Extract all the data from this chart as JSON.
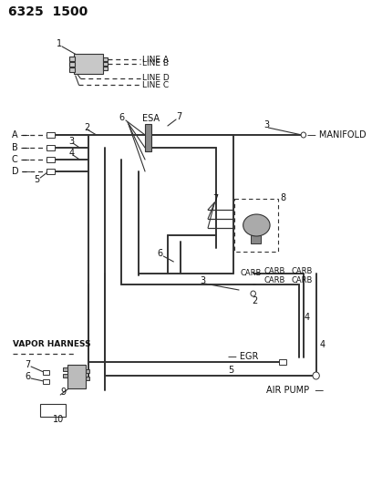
{
  "title": "6325  1500",
  "bg_color": "#ffffff",
  "lc": "#333333",
  "tc": "#111111",
  "lw": 1.4,
  "tlw": 0.9,
  "labels": {
    "line_a": "LINE A",
    "line_b": "LINE B",
    "line_d": "LINE D",
    "line_c": "LINE C",
    "manifold": "MANIFOLD",
    "esa": "ESA",
    "vapor_harness": "VAPOR HARNESS",
    "egr": "EGR",
    "air_pump": "AIR PUMP"
  }
}
